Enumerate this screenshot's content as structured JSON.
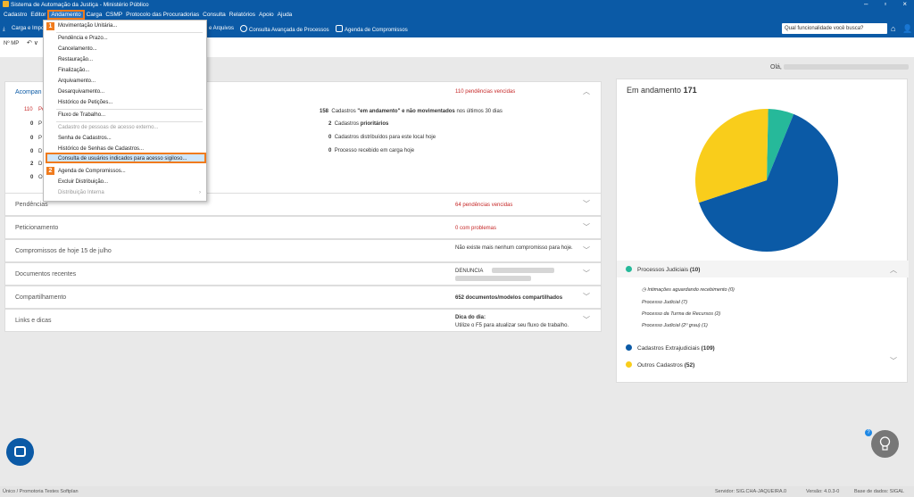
{
  "window": {
    "title": "Sistema de Automação da Justiça - Ministério Público",
    "min": "–",
    "max": "▫",
    "close": "×"
  },
  "menubar": [
    "Cadastro",
    "Editor",
    "Andamento",
    "Carga",
    "CSMP",
    "Protocolo das Procuradorias",
    "Consulta",
    "Relatórios",
    "Apoio",
    "Ajuda"
  ],
  "toolbar": {
    "carga": "Carga e Impo",
    "arquivos": "e Arquivos",
    "consulta": "Consulta Avançada de Processos",
    "agenda": "Agenda de Compromissos",
    "search_placeholder": "Qual funcionalidade você busca?"
  },
  "subbar": {
    "nmp": "Nº MP"
  },
  "greeting": "Olá,",
  "menu": {
    "items": [
      "Movimentação Unitária...",
      "Pendência e Prazo...",
      "Cancelamento...",
      "Restauração...",
      "Finalização...",
      "Arquivamento...",
      "Desarquivamento...",
      "Histórico de Petições...",
      "Fluxo de Trabalho...",
      "Cadastro de pessoas de acesso externo...",
      "Senha de Cadastros...",
      "Histórico de Senhas de Cadastros...",
      "Consulta de usuários indicados para acesso sigiloso...",
      "Agenda de Compromissos...",
      "Excluir Distribuição...",
      "Distribuição Interna"
    ],
    "badge1": "1",
    "badge2": "2"
  },
  "acompanhamento": {
    "title": "Acompan",
    "vencidas": "110 pendências vencidas",
    "left_counts": [
      "110",
      "0",
      "0",
      "0",
      "2",
      "0"
    ],
    "left_labels": [
      "Pe",
      "P",
      "P",
      "D",
      "D",
      "O"
    ],
    "stats": [
      {
        "num": "158",
        "text": "Cadastros",
        "bold": "\"em andamento\" e não movimentados",
        "rest": "nos últimos 30 dias"
      },
      {
        "num": "2",
        "text": "Cadastros",
        "bold": "prioritários",
        "rest": ""
      },
      {
        "num": "0",
        "text": "Cadastros distribuídos para este local hoje",
        "bold": "",
        "rest": ""
      },
      {
        "num": "0",
        "text": "Processo recebido em carga hoje",
        "bold": "",
        "rest": ""
      }
    ]
  },
  "rows": [
    {
      "label": "Pendências",
      "value": "64 pendências vencidas",
      "red": true
    },
    {
      "label": "Peticionamento",
      "value": "0 com problemas",
      "red": true
    },
    {
      "label": "Compromissos de hoje 15 de julho",
      "value": "Não existe mais nenhum compromisso para hoje.",
      "red": false
    },
    {
      "label": "Documentos recentes",
      "value": "DENUNCIA",
      "red": false
    },
    {
      "label": "Compartilhamento",
      "value": "652 documentos/modelos compartilhados",
      "red": false
    },
    {
      "label": "Links e dicas",
      "value": "Dica do dia:",
      "value2": "Utilize o F5 para atualizar seu fluxo de trabalho.",
      "red": false
    }
  ],
  "right": {
    "title": "Em andamento",
    "count": "171",
    "legend": [
      {
        "label": "Processos Judiciais",
        "count": "(10)",
        "color": "#26b99a"
      },
      {
        "label": "Cadastros Extrajudiciais",
        "count": "(109)",
        "color": "#0b5aa6"
      },
      {
        "label": "Outros Cadastros",
        "count": "(52)",
        "color": "#f9cd1b"
      }
    ],
    "subitems": [
      "Intimações aguardando recebimento (0)",
      "Processo Judicial (7)",
      "Processo da Turma de Recursos (2)",
      "Processo Judicial (2º grau) (1)"
    ]
  },
  "chart_data": {
    "type": "pie",
    "categories": [
      "Processos Judiciais",
      "Cadastros Extrajudiciais",
      "Outros Cadastros"
    ],
    "values": [
      10,
      109,
      52
    ],
    "colors": [
      "#26b99a",
      "#0b5aa6",
      "#f9cd1b"
    ]
  },
  "statusbar": {
    "user": "Único / Promotoria Testes Softplan",
    "server": "Servidor: SIG.CHA-JAQUEIRA.0",
    "version": "Versão: 4.0.3-0",
    "db": "Base de dados: SIGAL"
  },
  "help": "?"
}
